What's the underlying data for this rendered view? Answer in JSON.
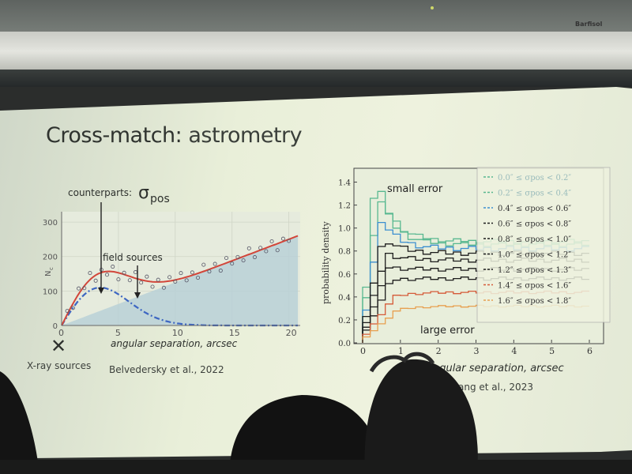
{
  "slide": {
    "title_main": "Cross-match:",
    "title_rest": " astrometry"
  },
  "left_plot": {
    "counterparts_label": "counterparts: ",
    "sigma_label": "σ",
    "sigma_sub": "pos",
    "field_sources_label": "field sources",
    "x_label": "angular separation, arcsec",
    "y_label": "N",
    "y_label_sub": "c",
    "x_ticks": [
      "0",
      "5",
      "10",
      "15",
      "20"
    ],
    "y_ticks": [
      "0",
      "100",
      "200",
      "300"
    ],
    "marker_symbol": "✕",
    "marker_label": "X-ray sources",
    "citation": "Belvedersky et al., 2022"
  },
  "right_plot": {
    "small_error_label": "small error",
    "large_error_label": "large error",
    "x_label": "angular separation, arcsec",
    "y_label": "probability density",
    "x_ticks": [
      "0",
      "1",
      "2",
      "3",
      "4",
      "5",
      "6"
    ],
    "y_ticks": [
      "0.0",
      "0.2",
      "0.4",
      "0.6",
      "0.8",
      "1.0",
      "1.2",
      "1.4"
    ],
    "citation": "ang et al., 2023",
    "legend": [
      "0.0″ ≤ σpos < 0.2″",
      "0.2″ ≤ σpos < 0.4″",
      "0.4″ ≤ σpos < 0.6″",
      "0.6″ ≤ σpos < 0.8″",
      "0.8″ ≤ σpos < 1.0″",
      "1.0″ ≤ σpos < 1.2″",
      "1.2″ ≤ σpos < 1.3″",
      "1.4″ ≤ σpos < 1.6″",
      "1.6″ ≤ σpos < 1.8″"
    ]
  },
  "colors": {
    "total_curve": "#d2463a",
    "counterpart_curve": "#3d66c2",
    "field_fill": "#b7cfd7",
    "green": "#58b890",
    "blue": "#3c8fd0",
    "black": "#1c1c1c",
    "red": "#d55a38",
    "orange": "#e7a050"
  },
  "room": {
    "brand": "Barfisol"
  }
}
